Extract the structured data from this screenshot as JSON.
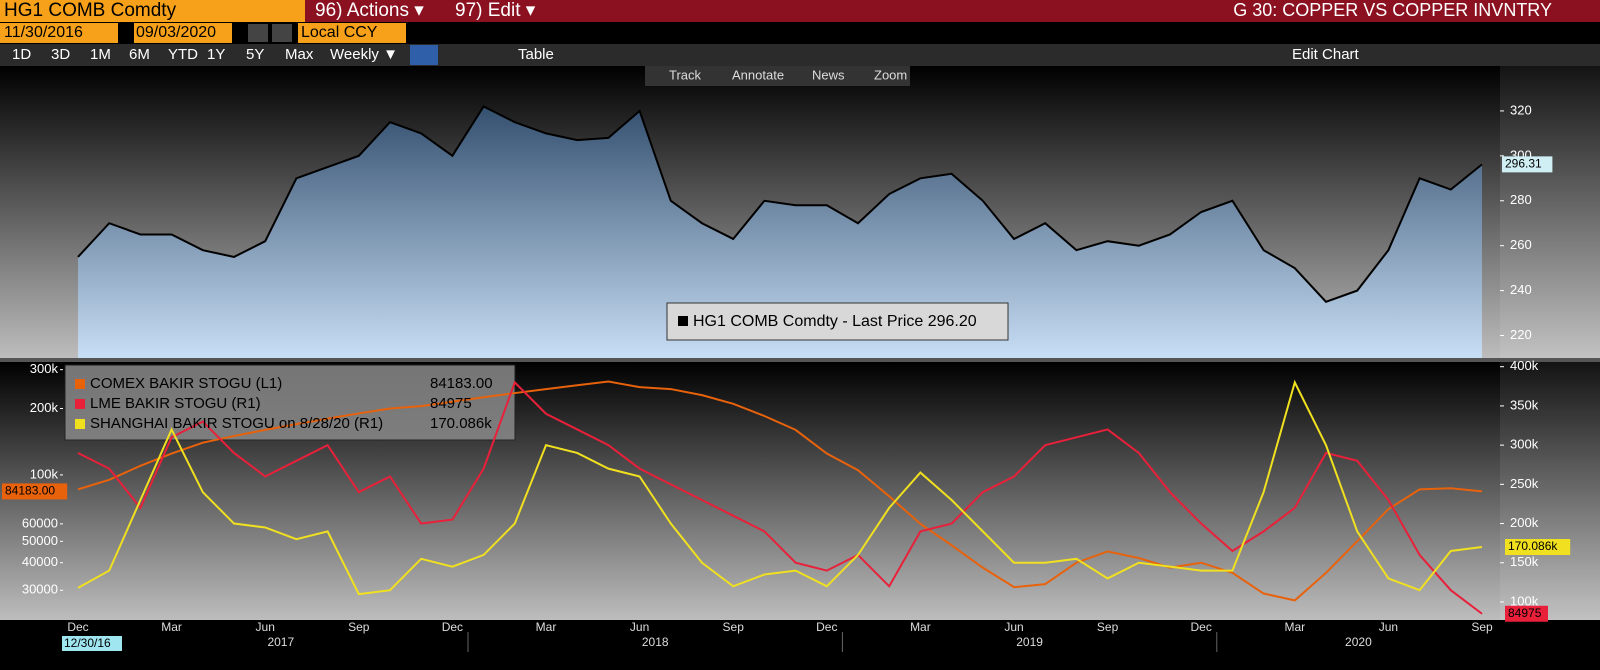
{
  "header": {
    "ticker": "HG1 COMB Comdty",
    "actions": "96) Actions ▾",
    "edit": "97) Edit ▾",
    "title": "G 30: COPPER VS COPPER INVNTRY"
  },
  "range": {
    "start": "11/30/2016",
    "end": "09/03/2020",
    "currency": "Local CCY"
  },
  "periods": [
    "1D",
    "3D",
    "1M",
    "6M",
    "YTD",
    "1Y",
    "5Y",
    "Max"
  ],
  "frequency": "Weekly ▼",
  "table": "Table",
  "edit_chart": "Edit Chart",
  "chart_tools": [
    "Track",
    "Annotate",
    "News",
    "Zoom"
  ],
  "start_date_badge": "12/30/16",
  "years": [
    "2017",
    "2018",
    "2019",
    "2020"
  ],
  "chart_data": [
    {
      "type": "area",
      "last_badge": "296.31",
      "series": [
        {
          "name": "HG1 COMB Comdty - Last Price 296.20",
          "color": "#000000",
          "values": [
            255,
            270,
            265,
            265,
            258,
            255,
            262,
            290,
            295,
            300,
            315,
            310,
            300,
            322,
            315,
            310,
            307,
            308,
            320,
            280,
            270,
            263,
            280,
            278,
            278,
            270,
            283,
            290,
            292,
            280,
            263,
            270,
            258,
            262,
            260,
            265,
            275,
            280,
            258,
            250,
            235,
            240,
            258,
            290,
            285,
            296.2
          ]
        }
      ],
      "ylim": [
        210,
        340
      ],
      "yticks": [
        220,
        240,
        260,
        280,
        300,
        320
      ]
    },
    {
      "type": "line",
      "ylog": true,
      "categories": [
        "Dec",
        null,
        null,
        "Mar",
        null,
        null,
        "Jun",
        null,
        null,
        "Sep",
        null,
        null,
        "Dec",
        null,
        null,
        "Mar",
        null,
        null,
        "Jun",
        null,
        null,
        "Sep",
        null,
        null,
        "Dec",
        null,
        null,
        "Mar",
        null,
        null,
        "Jun",
        null,
        null,
        "Sep",
        null,
        null,
        "Dec",
        null,
        null,
        "Mar",
        null,
        null,
        "Jun",
        null,
        null,
        "Sep"
      ],
      "series": [
        {
          "name": "COMEX BAKIR STOGU (L1)",
          "color": "#e8620c",
          "last_label": "84183.00",
          "axis": "y",
          "values": [
            86000,
            95000,
            110000,
            125000,
            140000,
            150000,
            160000,
            170000,
            180000,
            190000,
            200000,
            205000,
            215000,
            225000,
            235000,
            245000,
            255000,
            265000,
            250000,
            245000,
            230000,
            210000,
            185000,
            160000,
            125000,
            105000,
            80000,
            60000,
            48000,
            38000,
            31000,
            32000,
            40000,
            45000,
            42000,
            38000,
            40000,
            36000,
            29000,
            27000,
            36000,
            50000,
            70000,
            86000,
            87000,
            84183
          ]
        },
        {
          "name": "LME BAKIR STOGU (R1)",
          "color": "#e8203a",
          "last_label": "84975",
          "axis": "y2",
          "values": [
            290000,
            270000,
            220000,
            310000,
            330000,
            290000,
            260000,
            280000,
            300000,
            240000,
            260000,
            200000,
            205000,
            270000,
            380000,
            340000,
            320000,
            300000,
            270000,
            250000,
            230000,
            210000,
            190000,
            150000,
            140000,
            160000,
            120000,
            190000,
            200000,
            240000,
            260000,
            300000,
            310000,
            320000,
            290000,
            240000,
            200000,
            165000,
            190000,
            220000,
            290000,
            280000,
            230000,
            160000,
            115000,
            84975
          ]
        },
        {
          "name": "SHANGHAI BAKIR STOGU on 8/28/20 (R1)",
          "color": "#f0e020",
          "last_label": "170.086k",
          "axis": "y2",
          "values": [
            118000,
            140000,
            230000,
            320000,
            240000,
            200000,
            195000,
            180000,
            190000,
            110000,
            115000,
            155000,
            145000,
            160000,
            200000,
            300000,
            290000,
            270000,
            260000,
            200000,
            150000,
            120000,
            135000,
            140000,
            120000,
            160000,
            220000,
            265000,
            230000,
            190000,
            150000,
            150000,
            155000,
            130000,
            150000,
            145000,
            140000,
            140000,
            240000,
            380000,
            300000,
            190000,
            130000,
            115000,
            165000,
            170086
          ]
        }
      ],
      "ylim": [
        22000,
        325000
      ],
      "yticks": [
        {
          "value": 300000,
          "label": "300k"
        },
        {
          "value": 200000,
          "label": "200k"
        },
        {
          "value": 100000,
          "label": "100k"
        },
        60000,
        50000,
        40000,
        30000
      ],
      "y2lim": [
        77000,
        406000
      ],
      "y2ticks": [
        {
          "value": 400000,
          "label": "400k"
        },
        {
          "value": 350000,
          "label": "350k"
        },
        {
          "value": 300000,
          "label": "300k"
        },
        {
          "value": 250000,
          "label": "250k"
        },
        {
          "value": 200000,
          "label": "200k"
        },
        {
          "value": 150000,
          "label": "150k"
        },
        {
          "value": 100000,
          "label": "100k"
        }
      ]
    }
  ]
}
